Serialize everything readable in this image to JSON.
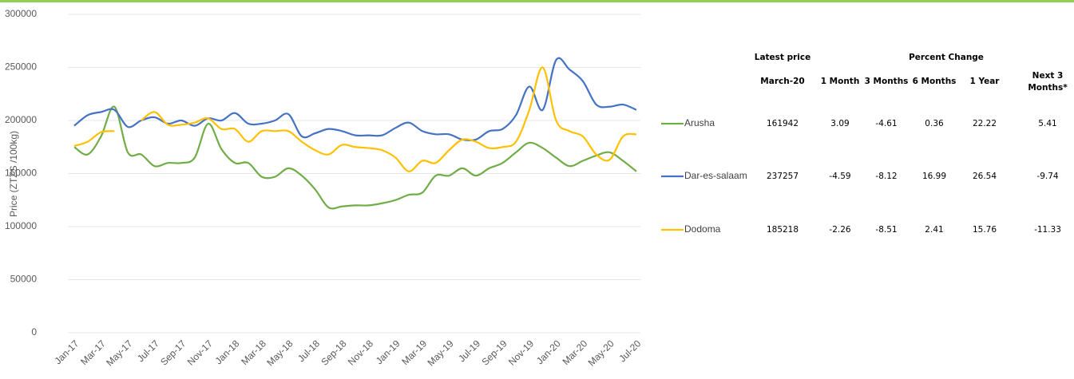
{
  "chart_data": {
    "type": "line",
    "y_label": "Price (ZTZS /100kg)",
    "categories": [
      "Jan-17",
      null,
      "Mar-17",
      null,
      "May-17",
      null,
      "Jul-17",
      null,
      "Sep-17",
      null,
      "Nov-17",
      null,
      "Jan-18",
      null,
      "Mar-18",
      null,
      "May-18",
      null,
      "Jul-18",
      null,
      "Sep-18",
      null,
      "Nov-18",
      null,
      "Jan-19",
      null,
      "Mar-19",
      null,
      "May-19",
      null,
      "Jul-19",
      null,
      "Sep-19",
      null,
      "Nov-19",
      null,
      "Jan-20",
      null,
      "Mar-20",
      null,
      "May-20",
      null,
      "Jul-20"
    ],
    "ylim": [
      0,
      300000
    ],
    "yticks": [
      0,
      50000,
      100000,
      150000,
      200000,
      250000,
      300000
    ],
    "grid": true,
    "series": [
      {
        "name": "Arusha",
        "color": "#70ad47",
        "values": [
          175000,
          168000,
          185000,
          213000,
          170000,
          168000,
          157000,
          160000,
          160000,
          165000,
          197000,
          173000,
          160000,
          160000,
          147000,
          147000,
          155000,
          148000,
          135000,
          118000,
          119000,
          120000,
          120000,
          122000,
          125000,
          130000,
          132000,
          148000,
          148000,
          155000,
          148000,
          155000,
          160000,
          170000,
          179000,
          174000,
          165000,
          157000,
          162000,
          167000,
          170000,
          162000,
          152000
        ]
      },
      {
        "name": "Dar-es-salaam",
        "color": "#4472c4",
        "values": [
          195000,
          205000,
          208000,
          210000,
          194000,
          200000,
          203000,
          197000,
          200000,
          195000,
          202000,
          200000,
          207000,
          197000,
          197000,
          200000,
          206000,
          185000,
          188000,
          192000,
          190000,
          186000,
          186000,
          186000,
          193000,
          198000,
          190000,
          187000,
          187000,
          182000,
          182000,
          190000,
          192000,
          205000,
          232000,
          210000,
          257000,
          248000,
          237000,
          215000,
          213000,
          215000,
          210000
        ]
      },
      {
        "name": "Dodoma",
        "color": "#ffc000",
        "values": [
          176000,
          180000,
          189000,
          190000,
          null,
          200000,
          208000,
          196000,
          196000,
          198000,
          202000,
          192000,
          192000,
          180000,
          190000,
          190000,
          190000,
          180000,
          172000,
          168000,
          177000,
          175000,
          174000,
          172000,
          165000,
          152000,
          162000,
          160000,
          172000,
          182000,
          180000,
          174000,
          175000,
          180000,
          210000,
          250000,
          200000,
          190000,
          185000,
          168000,
          163000,
          185000,
          187000
        ]
      }
    ]
  },
  "table": {
    "group_headers": [
      "Latest price",
      "Percent Change"
    ],
    "headers": [
      "March-20",
      "1 Month",
      "3 Months",
      "6 Months",
      "1 Year",
      "Next 3",
      "Months*"
    ],
    "rows": [
      [
        161942,
        3.09,
        -4.61,
        0.36,
        22.22,
        5.41
      ],
      [
        237257,
        -4.59,
        -8.12,
        16.99,
        26.54,
        -9.74
      ],
      [
        185218,
        -2.26,
        -8.51,
        2.41,
        15.76,
        -11.33
      ]
    ]
  }
}
